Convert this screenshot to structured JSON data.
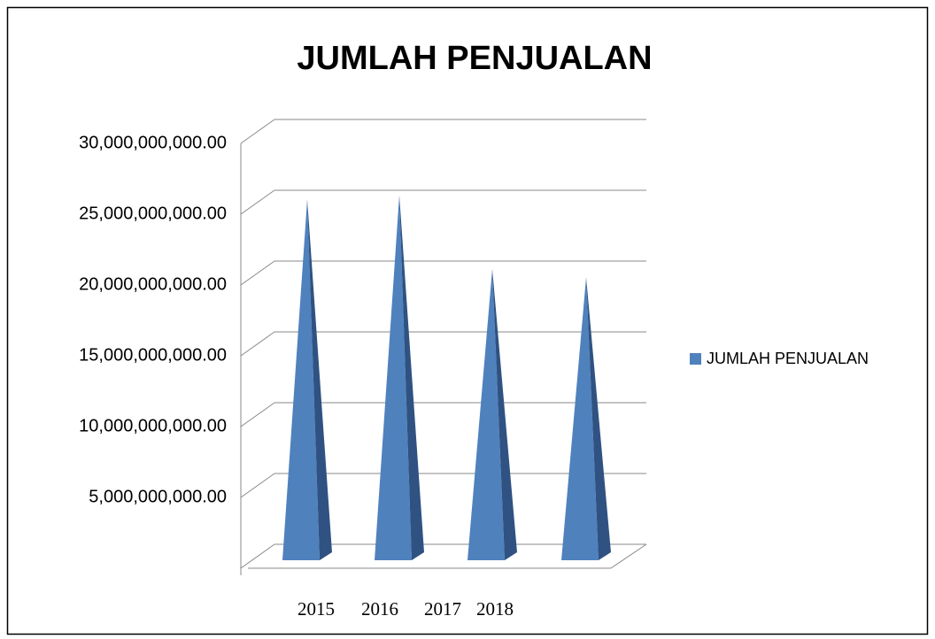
{
  "chart_data": {
    "type": "bar3d-pyramid",
    "title": "JUMLAH PENJUALAN",
    "categories": [
      "2015",
      "2016",
      "2017",
      "2018"
    ],
    "series": [
      {
        "name": "JUMLAH PENJUALAN",
        "color": "#4f81bd",
        "values": [
          25200000000,
          25500000000,
          20300000000,
          19700000000
        ]
      }
    ],
    "ylim": [
      0,
      30000000000
    ],
    "yticks": [
      {
        "value": 5000000000,
        "label": "5,000,000,000.00"
      },
      {
        "value": 10000000000,
        "label": "10,000,000,000.00"
      },
      {
        "value": 15000000000,
        "label": "15,000,000,000.00"
      },
      {
        "value": 20000000000,
        "label": "20,000,000,000.00"
      },
      {
        "value": 25000000000,
        "label": "25,000,000,000.00"
      },
      {
        "value": 30000000000,
        "label": "30,000,000,000.00"
      }
    ],
    "grid": true,
    "legend": "right"
  }
}
